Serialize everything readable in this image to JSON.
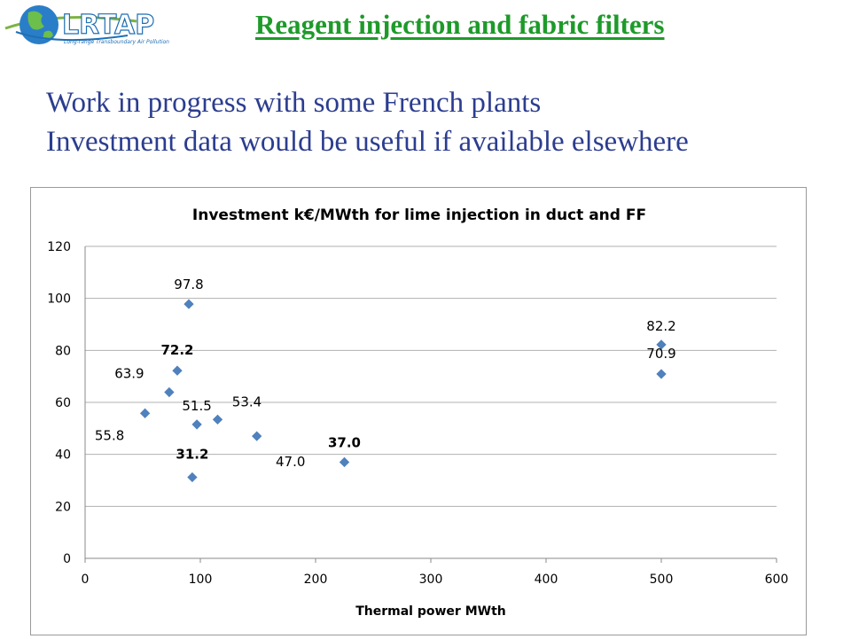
{
  "logo": {
    "text": "LRTAP",
    "subtitle": "Long-range Transboundary Air Pollution"
  },
  "slide": {
    "title": "Reagent injection and fabric filters",
    "lines": [
      "Work in progress with some French plants",
      "Investment data would be useful if available elsewhere"
    ]
  },
  "colors": {
    "title": "#1e9a2a",
    "body": "#2b3d8f",
    "marker": "#4f81bd"
  },
  "chart_data": {
    "type": "scatter",
    "title": "Investment k€/MWth for lime injection in duct and FF",
    "xlabel": "Thermal power MWth",
    "ylabel": "",
    "xlim": [
      0,
      600
    ],
    "ylim": [
      0,
      120
    ],
    "xticks": [
      0,
      100,
      200,
      300,
      400,
      500,
      600
    ],
    "yticks": [
      0,
      20,
      40,
      60,
      80,
      100,
      120
    ],
    "grid": "horizontal",
    "points": [
      {
        "x": 52,
        "y": 55.8,
        "label": "55.8"
      },
      {
        "x": 73,
        "y": 63.9,
        "label": "63.9"
      },
      {
        "x": 80,
        "y": 72.2,
        "label": "72.2"
      },
      {
        "x": 90,
        "y": 97.8,
        "label": "97.8"
      },
      {
        "x": 93,
        "y": 31.2,
        "label": "31.2"
      },
      {
        "x": 97,
        "y": 51.5,
        "label": "51.5"
      },
      {
        "x": 115,
        "y": 53.4,
        "label": "53.4"
      },
      {
        "x": 149,
        "y": 47.0,
        "label": "47.0"
      },
      {
        "x": 225,
        "y": 37.0,
        "label": "37.0"
      },
      {
        "x": 500,
        "y": 82.2,
        "label": "82.2"
      },
      {
        "x": 500,
        "y": 70.9,
        "label": "70.9"
      }
    ]
  }
}
